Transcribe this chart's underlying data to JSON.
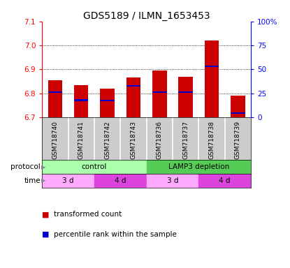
{
  "title": "GDS5189 / ILMN_1653453",
  "samples": [
    "GSM718740",
    "GSM718741",
    "GSM718742",
    "GSM718743",
    "GSM718736",
    "GSM718737",
    "GSM718738",
    "GSM718739"
  ],
  "bar_tops": [
    6.855,
    6.835,
    6.82,
    6.865,
    6.895,
    6.868,
    7.02,
    6.79
  ],
  "bar_base": 6.7,
  "blue_positions": [
    6.805,
    6.772,
    6.77,
    6.832,
    6.805,
    6.805,
    6.912,
    6.718
  ],
  "ylim_left": [
    6.7,
    7.1
  ],
  "ylim_right": [
    0,
    100
  ],
  "yticks_left": [
    6.7,
    6.8,
    6.9,
    7.0,
    7.1
  ],
  "yticks_right": [
    0,
    25,
    50,
    75,
    100
  ],
  "ytick_labels_right": [
    "0",
    "25",
    "50",
    "75",
    "100%"
  ],
  "bar_color": "#cc0000",
  "blue_color": "#0000cc",
  "protocol_groups": [
    {
      "label": "control",
      "start": 0,
      "end": 3,
      "color": "#aaffaa"
    },
    {
      "label": "LAMP3 depletion",
      "start": 4,
      "end": 7,
      "color": "#55cc55"
    }
  ],
  "time_groups": [
    {
      "label": "3 d",
      "start": 0,
      "end": 1,
      "color": "#ffaaff"
    },
    {
      "label": "4 d",
      "start": 2,
      "end": 3,
      "color": "#dd44dd"
    },
    {
      "label": "3 d",
      "start": 4,
      "end": 5,
      "color": "#ffaaff"
    },
    {
      "label": "4 d",
      "start": 6,
      "end": 7,
      "color": "#dd44dd"
    }
  ],
  "legend_red_label": "transformed count",
  "legend_blue_label": "percentile rank within the sample",
  "protocol_label": "protocol",
  "time_label": "time",
  "bar_width": 0.55,
  "title_fontsize": 10,
  "sample_bg_color": "#cccccc",
  "xlim": [
    -0.5,
    7.5
  ]
}
